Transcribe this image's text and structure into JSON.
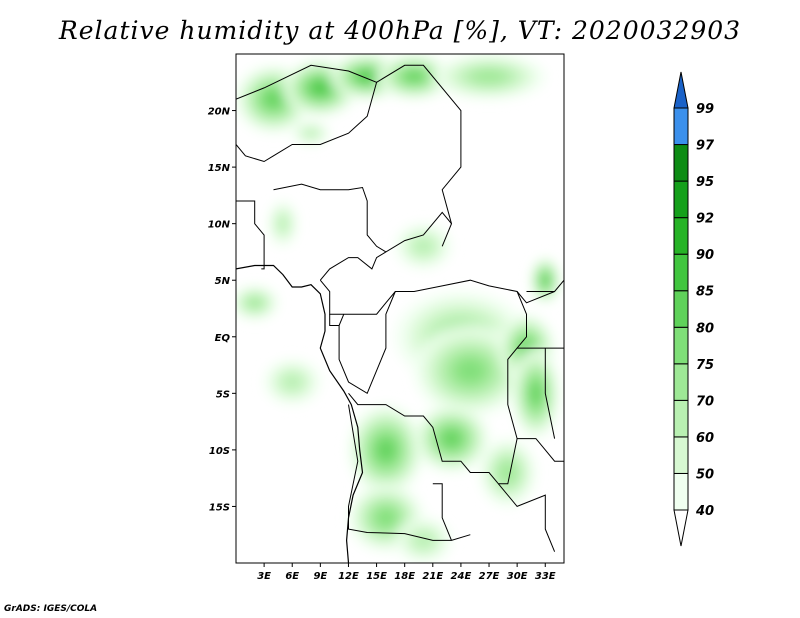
{
  "title": "Relative humidity at 400hPa [%], VT: 2020032903",
  "credit": "GrADS: IGES/COLA",
  "map": {
    "lon_range": [
      0,
      35
    ],
    "lat_range": [
      -20,
      25
    ],
    "lat_ticks": [
      {
        "value": 20,
        "label": "20N"
      },
      {
        "value": 15,
        "label": "15N"
      },
      {
        "value": 10,
        "label": "10N"
      },
      {
        "value": 5,
        "label": "5N"
      },
      {
        "value": 0,
        "label": "EQ"
      },
      {
        "value": -5,
        "label": "5S"
      },
      {
        "value": -10,
        "label": "10S"
      },
      {
        "value": -15,
        "label": "15S"
      }
    ],
    "lon_ticks": [
      {
        "value": 3,
        "label": "3E"
      },
      {
        "value": 6,
        "label": "6E"
      },
      {
        "value": 9,
        "label": "9E"
      },
      {
        "value": 12,
        "label": "12E"
      },
      {
        "value": 15,
        "label": "15E"
      },
      {
        "value": 18,
        "label": "18E"
      },
      {
        "value": 21,
        "label": "21E"
      },
      {
        "value": 24,
        "label": "24E"
      },
      {
        "value": 27,
        "label": "27E"
      },
      {
        "value": 30,
        "label": "30E"
      },
      {
        "value": 33,
        "label": "33E"
      }
    ]
  },
  "colorbar": {
    "levels": [
      {
        "label": "40",
        "color": "#f0fff0"
      },
      {
        "label": "50",
        "color": "#d7f8d2"
      },
      {
        "label": "60",
        "color": "#b9f0b2"
      },
      {
        "label": "70",
        "color": "#9ee896"
      },
      {
        "label": "75",
        "color": "#7fdf78"
      },
      {
        "label": "80",
        "color": "#5fd25a"
      },
      {
        "label": "85",
        "color": "#41c63f"
      },
      {
        "label": "90",
        "color": "#26b326"
      },
      {
        "label": "92",
        "color": "#15a01b"
      },
      {
        "label": "95",
        "color": "#0d8c14"
      },
      {
        "label": "97",
        "color": "#3b90ec"
      },
      {
        "label": "99",
        "color": "#1c6fd6"
      }
    ],
    "under_color": "#ffffff",
    "over_color": "#1a62c8"
  },
  "humidity_areas": [
    {
      "lon": 4,
      "lat": 21,
      "rx": 4,
      "ry": 3,
      "level": 5
    },
    {
      "lon": 9,
      "lat": 22,
      "rx": 4,
      "ry": 2.5,
      "level": 6
    },
    {
      "lon": 14,
      "lat": 23,
      "rx": 4,
      "ry": 2,
      "level": 6
    },
    {
      "lon": 19,
      "lat": 23,
      "rx": 4,
      "ry": 2,
      "level": 5
    },
    {
      "lon": 27,
      "lat": 23,
      "rx": 6,
      "ry": 2,
      "level": 3
    },
    {
      "lon": 8,
      "lat": 18,
      "rx": 2,
      "ry": 1,
      "level": 2
    },
    {
      "lon": 5,
      "lat": 10,
      "rx": 1.5,
      "ry": 2,
      "level": 2
    },
    {
      "lon": 2,
      "lat": 3,
      "rx": 2.5,
      "ry": 1.5,
      "level": 3
    },
    {
      "lon": 20,
      "lat": 8,
      "rx": 3,
      "ry": 2,
      "level": 2
    },
    {
      "lon": 33,
      "lat": 5,
      "rx": 1.5,
      "ry": 2,
      "level": 6
    },
    {
      "lon": 24,
      "lat": 0,
      "rx": 7,
      "ry": 4,
      "level": 3
    },
    {
      "lon": 25,
      "lat": -3,
      "rx": 6,
      "ry": 4,
      "level": 4
    },
    {
      "lon": 31,
      "lat": -1,
      "rx": 3,
      "ry": 3,
      "level": 5
    },
    {
      "lon": 32,
      "lat": -5,
      "rx": 2.5,
      "ry": 4,
      "level": 5
    },
    {
      "lon": 6,
      "lat": -4,
      "rx": 3,
      "ry": 2,
      "level": 2
    },
    {
      "lon": 16,
      "lat": -10,
      "rx": 4,
      "ry": 4,
      "level": 5
    },
    {
      "lon": 23,
      "lat": -9,
      "rx": 4,
      "ry": 3,
      "level": 5
    },
    {
      "lon": 16,
      "lat": -16,
      "rx": 4,
      "ry": 3,
      "level": 4
    },
    {
      "lon": 29,
      "lat": -12,
      "rx": 3,
      "ry": 3,
      "level": 3
    },
    {
      "lon": 20,
      "lat": -18,
      "rx": 3,
      "ry": 2,
      "level": 2
    }
  ],
  "boundaries": [
    [
      [
        0,
        17
      ],
      [
        1,
        16
      ],
      [
        3,
        15.5
      ],
      [
        4,
        16
      ],
      [
        6,
        17
      ],
      [
        9,
        17
      ],
      [
        12,
        18
      ],
      [
        14,
        19.5
      ],
      [
        15,
        22.5
      ]
    ],
    [
      [
        0,
        21
      ],
      [
        3,
        22
      ],
      [
        8,
        24
      ],
      [
        12,
        23.5
      ],
      [
        15,
        22.5
      ],
      [
        18,
        24
      ],
      [
        20,
        24
      ],
      [
        24,
        20
      ],
      [
        24,
        15
      ],
      [
        22,
        13
      ],
      [
        23,
        10
      ],
      [
        22,
        8
      ]
    ],
    [
      [
        4,
        13
      ],
      [
        7,
        13.5
      ],
      [
        9,
        13
      ],
      [
        12,
        13
      ],
      [
        13.5,
        13.2
      ],
      [
        14,
        12
      ],
      [
        14,
        9
      ],
      [
        15,
        8
      ],
      [
        16,
        7.5
      ],
      [
        18,
        8.5
      ],
      [
        20,
        9
      ],
      [
        22,
        11
      ],
      [
        23,
        10
      ]
    ],
    [
      [
        0,
        12
      ],
      [
        2,
        12
      ],
      [
        2,
        10
      ],
      [
        3,
        9
      ],
      [
        3,
        6
      ],
      [
        2.7,
        6
      ]
    ],
    [
      [
        9,
        5
      ],
      [
        10,
        6
      ],
      [
        12,
        7
      ],
      [
        13,
        7
      ],
      [
        14.5,
        6
      ],
      [
        15,
        7
      ],
      [
        16,
        7.5
      ]
    ],
    [
      [
        9,
        5
      ],
      [
        10,
        4
      ],
      [
        10,
        2
      ],
      [
        11.5,
        2
      ],
      [
        13,
        2
      ],
      [
        15,
        2
      ],
      [
        16,
        3
      ],
      [
        17,
        4
      ],
      [
        19,
        4
      ],
      [
        22,
        4.5
      ],
      [
        25,
        5
      ],
      [
        27,
        4.5
      ],
      [
        30,
        4
      ],
      [
        31,
        3
      ],
      [
        34,
        4
      ]
    ],
    [
      [
        10,
        2
      ],
      [
        10,
        1
      ],
      [
        11,
        1
      ],
      [
        11.5,
        2
      ]
    ],
    [
      [
        11,
        1
      ],
      [
        11,
        -2
      ],
      [
        12,
        -4
      ],
      [
        14,
        -5
      ],
      [
        16,
        -1
      ],
      [
        16,
        2
      ],
      [
        17,
        4
      ]
    ],
    [
      [
        12,
        -5
      ],
      [
        13,
        -6
      ],
      [
        16,
        -6
      ],
      [
        18,
        -7
      ],
      [
        20,
        -7
      ],
      [
        21,
        -8
      ],
      [
        22,
        -11
      ],
      [
        24,
        -11
      ],
      [
        25,
        -12
      ],
      [
        27,
        -12
      ],
      [
        28,
        -13
      ],
      [
        29,
        -13
      ],
      [
        30,
        -9
      ],
      [
        29,
        -6
      ],
      [
        29,
        -2
      ],
      [
        30,
        -1
      ],
      [
        31,
        0
      ],
      [
        31,
        2
      ],
      [
        30,
        4
      ]
    ],
    [
      [
        12,
        -6
      ],
      [
        13,
        -11
      ],
      [
        12,
        -15
      ],
      [
        12,
        -17
      ],
      [
        14,
        -17.3
      ],
      [
        18,
        -17.4
      ],
      [
        21,
        -18
      ],
      [
        23,
        -18
      ],
      [
        25,
        -17.5
      ]
    ],
    [
      [
        21,
        -13
      ],
      [
        22,
        -13
      ],
      [
        22,
        -16
      ],
      [
        23,
        -18
      ]
    ],
    [
      [
        28,
        -13
      ],
      [
        30,
        -15
      ],
      [
        33,
        -14
      ],
      [
        33,
        -17
      ],
      [
        34,
        -19
      ]
    ],
    [
      [
        30,
        -9
      ],
      [
        32,
        -9
      ],
      [
        33,
        -10
      ],
      [
        34,
        -11
      ],
      [
        35,
        -11
      ]
    ],
    [
      [
        30,
        -1
      ],
      [
        34,
        -1
      ],
      [
        35,
        -1
      ]
    ],
    [
      [
        31,
        4
      ],
      [
        34,
        4
      ],
      [
        35,
        5
      ]
    ],
    [
      [
        33,
        -1
      ],
      [
        33,
        -5
      ],
      [
        34,
        -9
      ]
    ]
  ],
  "coastline": [
    [
      0,
      6
    ],
    [
      2,
      6.3
    ],
    [
      4,
      6.3
    ],
    [
      5,
      5.5
    ],
    [
      6,
      4.4
    ],
    [
      7,
      4.4
    ],
    [
      8,
      4.6
    ],
    [
      9,
      3.8
    ],
    [
      9.5,
      2
    ],
    [
      9.5,
      0.5
    ],
    [
      9,
      -1
    ],
    [
      10,
      -3
    ],
    [
      11.5,
      -4.8
    ],
    [
      12.3,
      -6
    ],
    [
      13,
      -8
    ],
    [
      13.2,
      -10
    ],
    [
      13.5,
      -12
    ],
    [
      12.5,
      -14
    ],
    [
      12,
      -16
    ],
    [
      11.8,
      -18
    ],
    [
      12,
      -20
    ]
  ]
}
